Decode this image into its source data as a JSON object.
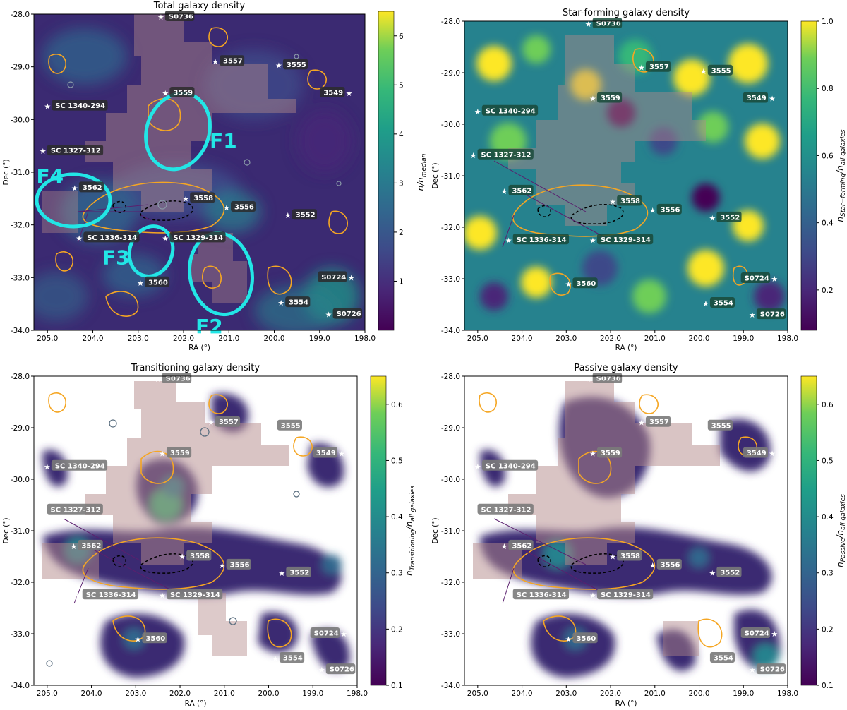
{
  "chart_data": [
    {
      "type": "heatmap",
      "title": "Total galaxy density",
      "xlabel": "RA (°)",
      "ylabel": "Dec (°)",
      "xlim": [
        205.3,
        198.0
      ],
      "ylim": [
        -34.0,
        -28.0
      ],
      "xticks": [
        205.0,
        204.0,
        203.0,
        202.0,
        201.0,
        200.0,
        199.0,
        198.0
      ],
      "yticks": [
        -28.0,
        -29.0,
        -30.0,
        -31.0,
        -32.0,
        -33.0,
        -34.0
      ],
      "colormap": "viridis",
      "colorbar": {
        "label": "n/n_median",
        "ticks": [
          1,
          2,
          3,
          4,
          5,
          6
        ],
        "range": [
          0,
          6.5
        ]
      },
      "regions": [
        {
          "name": "F1",
          "ra": 202.2,
          "dec": -30.4
        },
        {
          "name": "F2",
          "ra": 200.8,
          "dec": -33.25
        },
        {
          "name": "F3",
          "ra": 202.7,
          "dec": -32.55
        },
        {
          "name": "F4",
          "ra": 204.0,
          "dec": -31.6
        }
      ]
    },
    {
      "type": "heatmap",
      "title": "Star-forming galaxy density",
      "xlabel": "RA (°)",
      "ylabel": "Dec (°)",
      "xlim": [
        205.3,
        198.0
      ],
      "ylim": [
        -34.0,
        -28.0
      ],
      "xticks": [
        205.0,
        204.0,
        203.0,
        202.0,
        201.0,
        200.0,
        199.0,
        198.0
      ],
      "yticks": [
        -28.0,
        -29.0,
        -30.0,
        -31.0,
        -32.0,
        -33.0,
        -34.0
      ],
      "colormap": "viridis",
      "colorbar": {
        "label": "n_Star-forming/n_all galaxies",
        "ticks": [
          0.2,
          0.4,
          0.6,
          0.8,
          1.0
        ],
        "range": [
          0.08,
          1.0
        ]
      }
    },
    {
      "type": "heatmap",
      "title": "Transitioning galaxy density",
      "xlabel": "RA (°)",
      "ylabel": "Dec (°)",
      "xlim": [
        205.3,
        198.0
      ],
      "ylim": [
        -34.0,
        -28.0
      ],
      "xticks": [
        205.0,
        204.0,
        203.0,
        202.0,
        201.0,
        200.0,
        199.0,
        198.0
      ],
      "yticks": [
        -28.0,
        -29.0,
        -30.0,
        -31.0,
        -32.0,
        -33.0,
        -34.0
      ],
      "colormap": "viridis",
      "colorbar": {
        "label": "n_Transitioning/n_all galaxies",
        "ticks": [
          0.1,
          0.2,
          0.3,
          0.4,
          0.5,
          0.6
        ],
        "range": [
          0.1,
          0.65
        ]
      }
    },
    {
      "type": "heatmap",
      "title": "Passive galaxy density",
      "xlabel": "RA (°)",
      "ylabel": "Dec (°)",
      "xlim": [
        205.3,
        198.0
      ],
      "ylim": [
        -34.0,
        -28.0
      ],
      "xticks": [
        205.0,
        204.0,
        203.0,
        202.0,
        201.0,
        200.0,
        199.0,
        198.0
      ],
      "yticks": [
        -28.0,
        -29.0,
        -30.0,
        -31.0,
        -32.0,
        -33.0,
        -34.0
      ],
      "colormap": "viridis",
      "colorbar": {
        "label": "n_Passive/n_all galaxies",
        "ticks": [
          0.1,
          0.2,
          0.3,
          0.4,
          0.5,
          0.6
        ],
        "range": [
          0.1,
          0.65
        ]
      }
    }
  ],
  "labels": [
    {
      "name": "S0736",
      "ra": 202.5,
      "dec": -28.0
    },
    {
      "name": "3557",
      "ra": 201.3,
      "dec": -28.9
    },
    {
      "name": "3555",
      "ra": 199.9,
      "dec": -28.97
    },
    {
      "name": "3549",
      "ra": 198.35,
      "dec": -29.5
    },
    {
      "name": "3559",
      "ra": 202.4,
      "dec": -29.5
    },
    {
      "name": "SC 1340-294",
      "ra": 205.0,
      "dec": -29.75
    },
    {
      "name": "SC 1327-312",
      "ra": 205.1,
      "dec": -30.6
    },
    {
      "name": "3562",
      "ra": 204.4,
      "dec": -31.3
    },
    {
      "name": "3558",
      "ra": 201.95,
      "dec": -31.5
    },
    {
      "name": "3556",
      "ra": 201.05,
      "dec": -31.67
    },
    {
      "name": "3552",
      "ra": 199.7,
      "dec": -31.82
    },
    {
      "name": "SC 1329-314",
      "ra": 202.4,
      "dec": -32.25
    },
    {
      "name": "SC 1336-314",
      "ra": 204.3,
      "dec": -32.25
    },
    {
      "name": "S0724",
      "ra": 198.3,
      "dec": -33.0
    },
    {
      "name": "3560",
      "ra": 202.95,
      "dec": -33.1
    },
    {
      "name": "3554",
      "ra": 199.85,
      "dec": -33.48
    },
    {
      "name": "S0726",
      "ra": 198.8,
      "dec": -33.7
    }
  ]
}
